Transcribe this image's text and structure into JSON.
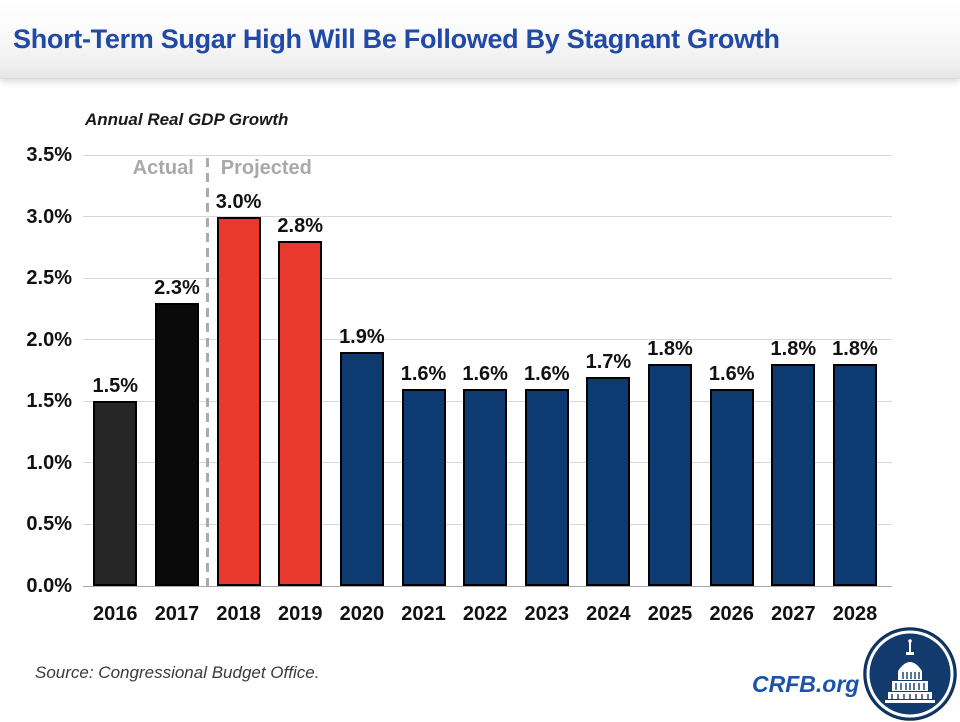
{
  "header": {
    "title": "Short-Term Sugar High Will Be Followed By Stagnant Growth"
  },
  "chart_data": {
    "type": "bar",
    "title": "Annual Real GDP Growth",
    "categories": [
      "2016",
      "2017",
      "2018",
      "2019",
      "2020",
      "2021",
      "2022",
      "2023",
      "2024",
      "2025",
      "2026",
      "2027",
      "2028"
    ],
    "values": [
      1.5,
      2.3,
      3.0,
      2.8,
      1.9,
      1.6,
      1.6,
      1.6,
      1.7,
      1.8,
      1.6,
      1.8,
      1.8
    ],
    "value_labels": [
      "1.5%",
      "2.3%",
      "3.0%",
      "2.8%",
      "1.9%",
      "1.6%",
      "1.6%",
      "1.6%",
      "1.7%",
      "1.8%",
      "1.6%",
      "1.8%",
      "1.8%"
    ],
    "bar_colors": [
      "#262626",
      "#0a0a0a",
      "#e8392c",
      "#e8392c",
      "#0d3a70",
      "#0d3a70",
      "#0d3a70",
      "#0d3a70",
      "#0d3a70",
      "#0d3a70",
      "#0d3a70",
      "#0d3a70",
      "#0d3a70"
    ],
    "yticks": [
      "0.0%",
      "0.5%",
      "1.0%",
      "1.5%",
      "2.0%",
      "2.5%",
      "3.0%",
      "3.5%"
    ],
    "ylim": [
      0,
      3.5
    ],
    "ytick_step": 0.5,
    "grid": true,
    "divider_after_index": 1,
    "annotations": {
      "actual": "Actual",
      "projected": "Projected"
    }
  },
  "footer": {
    "source": "Source: Congressional Budget Office.",
    "brand": "CRFB.org"
  },
  "colors": {
    "title_blue": "#2149a6",
    "brand_blue": "#1c52a8",
    "actual_black": "#0a0a0a",
    "sugar_high_red": "#e8392c",
    "projected_navy": "#0d3a70",
    "phase_gray": "#a9a9a9"
  }
}
